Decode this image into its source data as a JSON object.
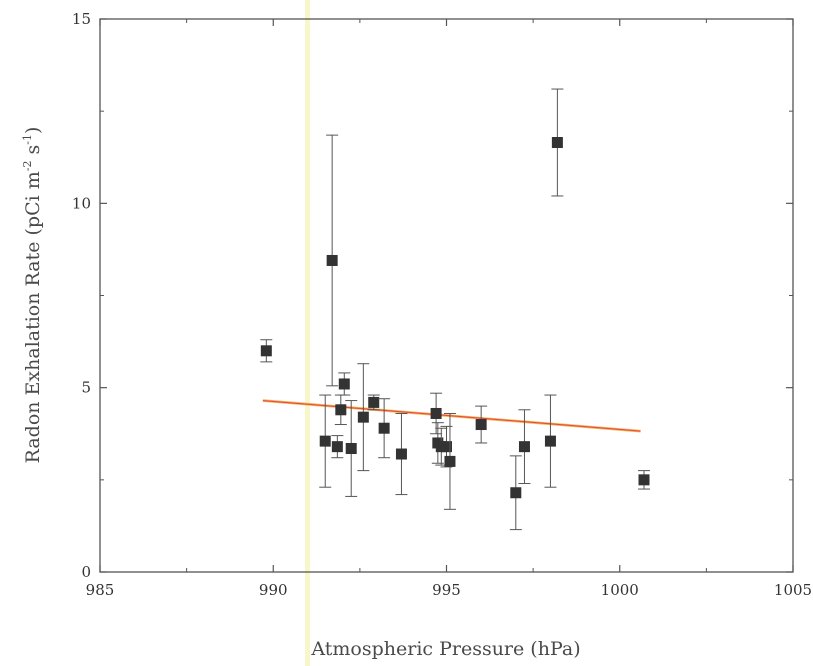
{
  "chart_data": {
    "type": "scatter",
    "xlabel": "Atmospheric Pressure (hPa)",
    "ylabel_parts": {
      "main": "Radon Exhalation Rate (pCi m",
      "exp1": "-2",
      "mid": " s",
      "exp2": "-1",
      "end": ")"
    },
    "xlim": [
      985,
      1005
    ],
    "ylim": [
      0,
      15
    ],
    "xticks": [
      "985",
      "990",
      "995",
      "1000",
      "1005"
    ],
    "yticks": [
      "0",
      "5",
      "10",
      "15"
    ],
    "grid": false,
    "points": [
      {
        "x": 989.8,
        "y": 6.0,
        "err": 0.3
      },
      {
        "x": 991.5,
        "y": 3.55,
        "err": 1.25
      },
      {
        "x": 991.7,
        "y": 8.45,
        "err": 3.4
      },
      {
        "x": 991.85,
        "y": 3.4,
        "err": 0.3
      },
      {
        "x": 991.95,
        "y": 4.4,
        "err": 0.4
      },
      {
        "x": 992.05,
        "y": 5.1,
        "err": 0.3
      },
      {
        "x": 992.25,
        "y": 3.35,
        "err": 1.3
      },
      {
        "x": 992.6,
        "y": 4.2,
        "err": 1.45
      },
      {
        "x": 992.9,
        "y": 4.6,
        "err": 0.2
      },
      {
        "x": 993.2,
        "y": 3.9,
        "err": 0.8
      },
      {
        "x": 993.7,
        "y": 3.2,
        "err": 1.1
      },
      {
        "x": 994.7,
        "y": 4.3,
        "err": 0.55
      },
      {
        "x": 994.75,
        "y": 3.5,
        "err": 0.55
      },
      {
        "x": 994.85,
        "y": 3.4,
        "err": 0.5
      },
      {
        "x": 995.0,
        "y": 3.4,
        "err": 0.55
      },
      {
        "x": 995.1,
        "y": 3.0,
        "err": 1.3
      },
      {
        "x": 996.0,
        "y": 4.0,
        "err": 0.5
      },
      {
        "x": 997.0,
        "y": 2.15,
        "err": 1.0
      },
      {
        "x": 997.25,
        "y": 3.4,
        "err": 1.0
      },
      {
        "x": 998.0,
        "y": 3.55,
        "err": 1.25
      },
      {
        "x": 998.2,
        "y": 11.65,
        "err": 1.45
      },
      {
        "x": 1000.7,
        "y": 2.5,
        "err": 0.25
      }
    ],
    "fit_line": {
      "x1": 989.7,
      "y1": 4.65,
      "x2": 1000.6,
      "y2": 3.82
    },
    "colors": {
      "marker": "#333333",
      "axis": "#555555",
      "fit_outer": "#f5b04a",
      "fit_inner": "#e4444f",
      "artifact_stripe": "#f9f7c9"
    }
  }
}
